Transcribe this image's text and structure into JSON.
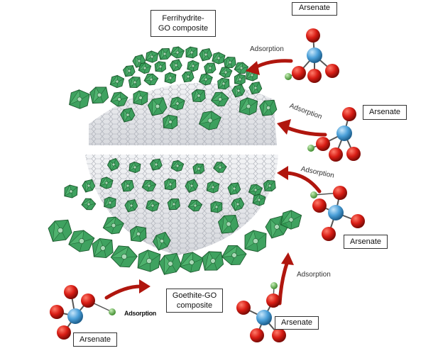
{
  "labels": {
    "ferrihydrite_composite": "Ferrihydrite-\nGO composite",
    "goethite_composite": "Goethite-GO\ncomposite",
    "arsenate": "Arsenate",
    "adsorption": "Adsorption"
  },
  "colors": {
    "octahedra_fill": "#2f9a52",
    "octahedra_stroke": "#1c5a2e",
    "oxygen_red": "#d81c14",
    "arsenic_blue": "#4a9fd8",
    "hydrogen_green": "#5fb54a",
    "arrow_red": "#b0160e",
    "graphene_gray": "#b9bcc4"
  }
}
